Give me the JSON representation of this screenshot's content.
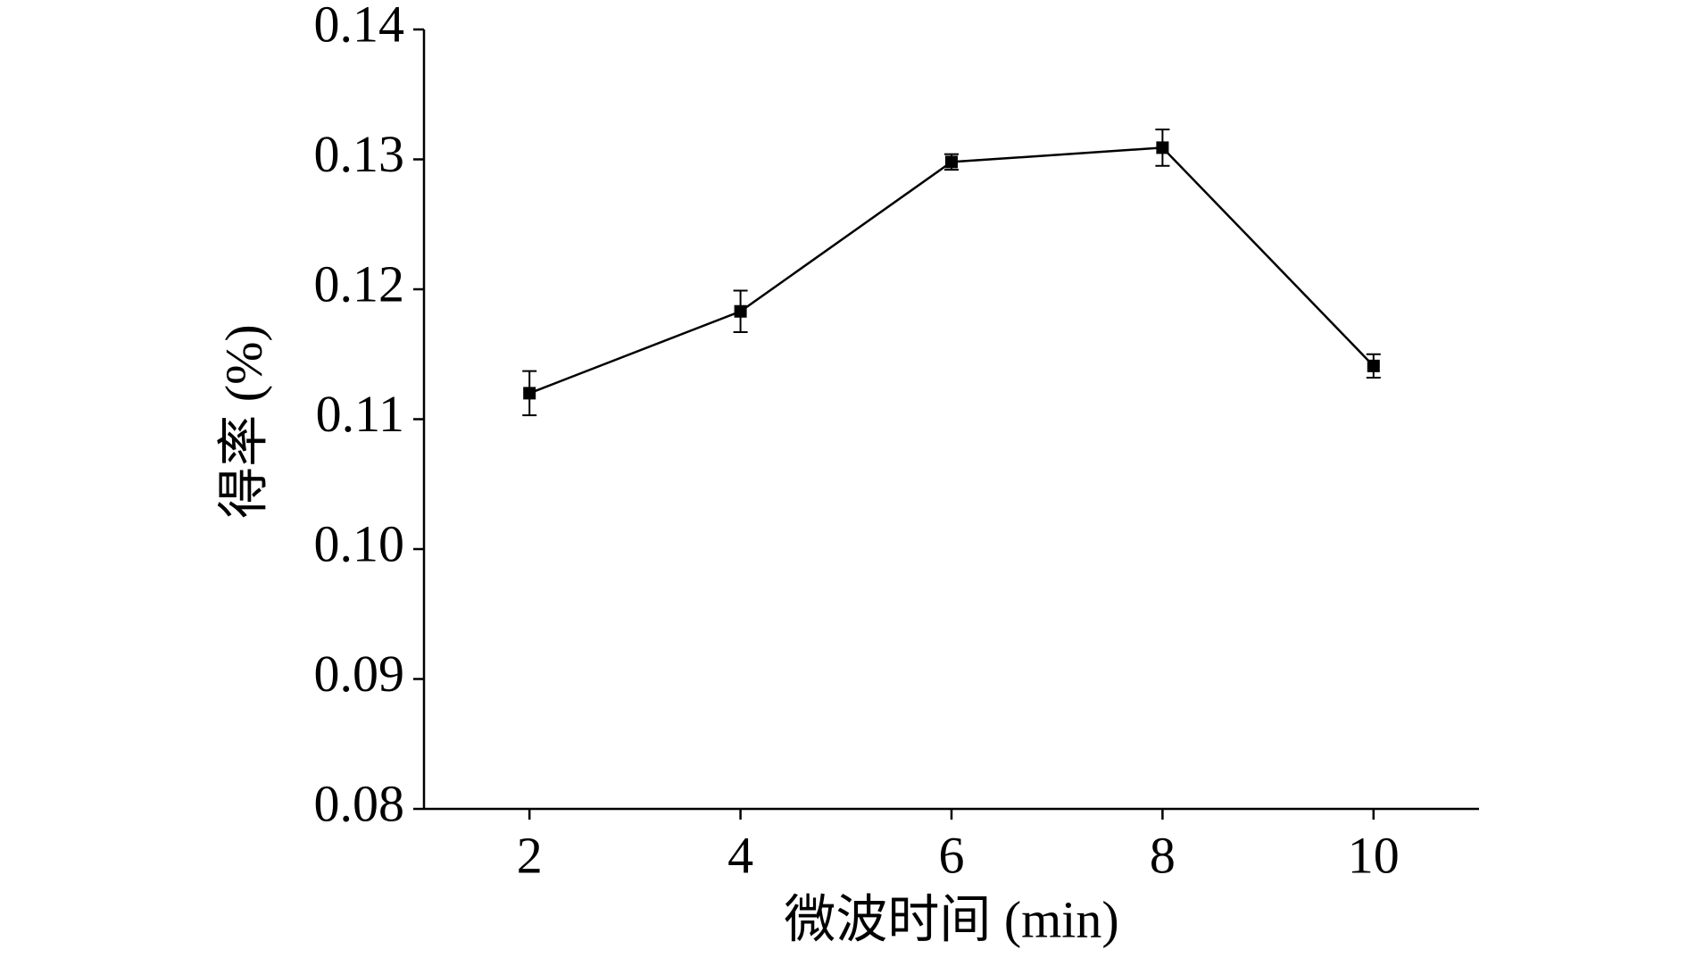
{
  "chart_data": {
    "type": "line",
    "x_label": "微波时间 (min)",
    "y_label": "得率 (%)",
    "x": [
      2,
      4,
      6,
      8,
      10
    ],
    "series": [
      {
        "color": "#000000",
        "values": [
          0.112,
          0.1183,
          0.1298,
          0.1309,
          0.1141
        ],
        "errors": [
          0.0017,
          0.0016,
          0.0006,
          0.0014,
          0.0009
        ]
      }
    ],
    "xlim": [
      1,
      11
    ],
    "xticks": [
      2,
      4,
      6,
      8,
      10
    ],
    "ylim": [
      0.08,
      0.14
    ],
    "yticks": [
      {
        "value": 0.08,
        "label": "0.08"
      },
      {
        "value": 0.09,
        "label": "0.09"
      },
      {
        "value": 0.1,
        "label": "0.10"
      },
      {
        "value": 0.11,
        "label": "0.11"
      },
      {
        "value": 0.12,
        "label": "0.12"
      },
      {
        "value": 0.13,
        "label": "0.13"
      },
      {
        "value": 0.14,
        "label": "0.14"
      }
    ]
  }
}
